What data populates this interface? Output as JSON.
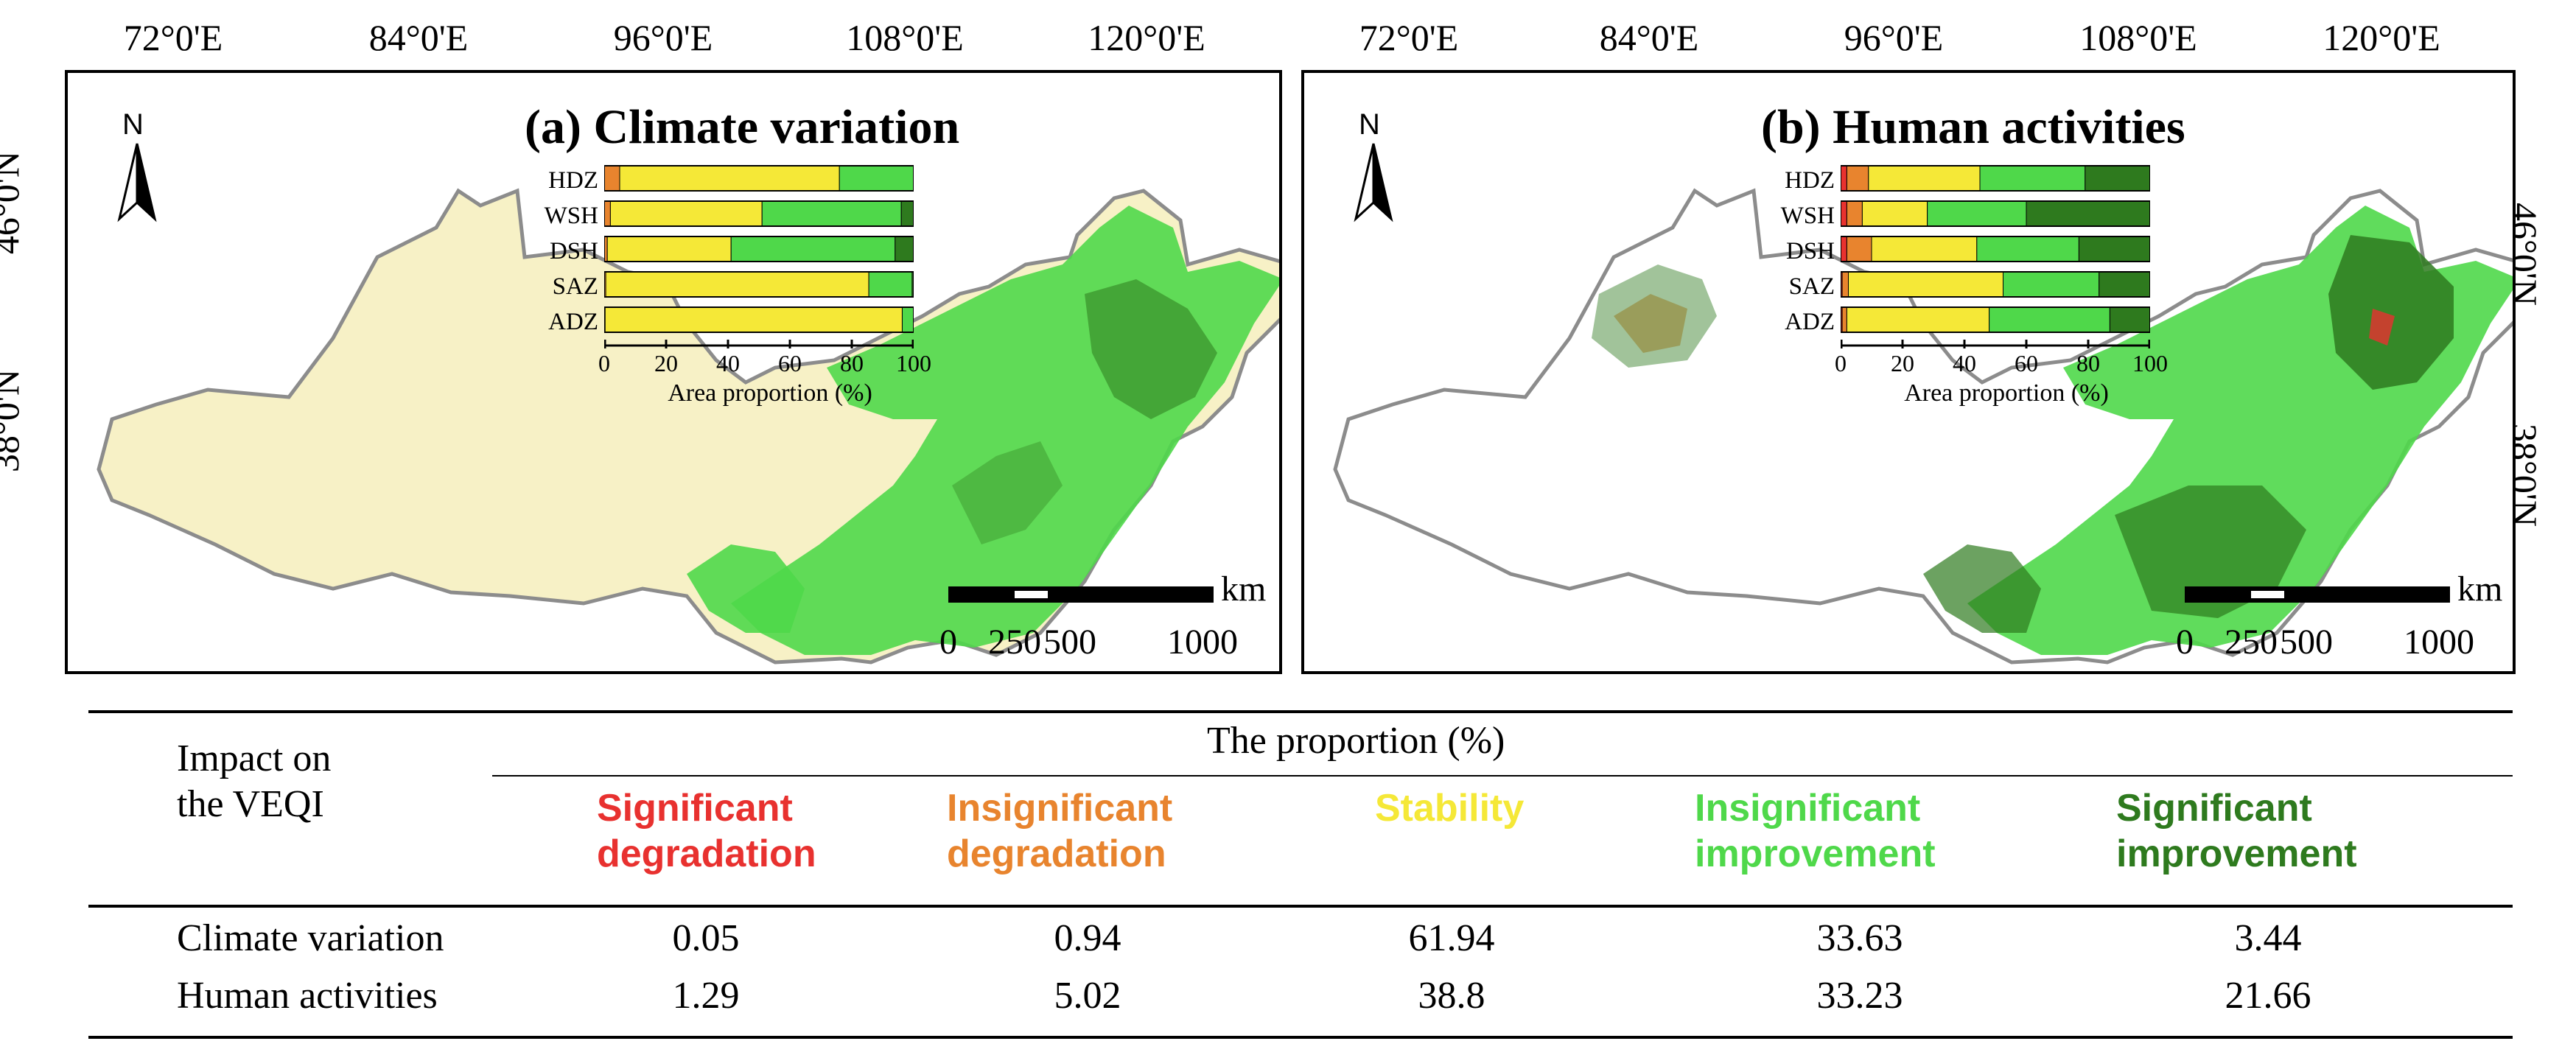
{
  "colors": {
    "significant_degradation": "#e8312f",
    "insignificant_degradation": "#e8842e",
    "stability": "#f5e837",
    "insignificant_improvement": "#4fd84a",
    "significant_improvement": "#2e7a1e",
    "map_pale": "#f7f1c6"
  },
  "axes": {
    "longitude_labels": [
      "72°0'E",
      "84°0'E",
      "96°0'E",
      "108°0'E",
      "120°0'E"
    ],
    "latitude_left": [
      "46°0'N",
      "38°0'N"
    ],
    "latitude_right": [
      "46°0'N",
      "38°0'N"
    ]
  },
  "panels": [
    {
      "id": "a",
      "title": "(a)  Climate variation",
      "north": "N",
      "scale": {
        "unit": "km",
        "labels": [
          "0",
          "250",
          "500",
          "1000"
        ]
      },
      "inset": {
        "categories": [
          "HDZ",
          "WSH",
          "DSH",
          "SAZ",
          "ADZ"
        ],
        "xlabel": "Area proportion (%)",
        "xticks": [
          "0",
          "20",
          "40",
          "60",
          "80",
          "100"
        ],
        "series": [
          {
            "name": "Significant degradation",
            "values": [
              0,
              0,
              0,
              0,
              0
            ]
          },
          {
            "name": "Insignificant degradation",
            "values": [
              5,
              2,
              1,
              0.5,
              0.3
            ]
          },
          {
            "name": "Stability",
            "values": [
              71,
              49,
              40,
              85,
              96
            ]
          },
          {
            "name": "Insignificant improvement",
            "values": [
              24,
              45,
              53,
              14,
              3.7
            ]
          },
          {
            "name": "Significant improvement",
            "values": [
              0,
              4,
              6,
              0.5,
              0
            ]
          }
        ]
      }
    },
    {
      "id": "b",
      "title": "(b)  Human activities",
      "north": "N",
      "scale": {
        "unit": "km",
        "labels": [
          "0",
          "250",
          "500",
          "1000"
        ]
      },
      "inset": {
        "categories": [
          "HDZ",
          "WSH",
          "DSH",
          "SAZ",
          "ADZ"
        ],
        "xlabel": "Area proportion (%)",
        "xticks": [
          "0",
          "20",
          "40",
          "60",
          "80",
          "100"
        ],
        "series": [
          {
            "name": "Significant degradation",
            "values": [
              2,
              2,
              2,
              0.5,
              0.5
            ]
          },
          {
            "name": "Insignificant degradation",
            "values": [
              7,
              5,
              8,
              2,
              1.5
            ]
          },
          {
            "name": "Stability",
            "values": [
              36,
              21,
              34,
              50,
              46
            ]
          },
          {
            "name": "Insignificant improvement",
            "values": [
              34,
              32,
              33,
              31,
              39
            ]
          },
          {
            "name": "Significant improvement",
            "values": [
              21,
              40,
              23,
              16.5,
              13
            ]
          }
        ]
      }
    }
  ],
  "table": {
    "corner_label_line1": "Impact on",
    "corner_label_line2": "the  VEQI",
    "group_header": "The proportion (%)",
    "columns": [
      {
        "line1": "Significant",
        "line2": "degradation",
        "color_key": "significant_degradation"
      },
      {
        "line1": "Insignificant",
        "line2": "degradation",
        "color_key": "insignificant_degradation"
      },
      {
        "line1": "Stability",
        "line2": "",
        "color_key": "stability"
      },
      {
        "line1": "Insignificant",
        "line2": "improvement",
        "color_key": "insignificant_improvement"
      },
      {
        "line1": "Significant",
        "line2": "improvement",
        "color_key": "significant_improvement"
      }
    ],
    "rows": [
      {
        "label": "Climate variation",
        "values": [
          "0.05",
          "0.94",
          "61.94",
          "33.63",
          "3.44"
        ]
      },
      {
        "label": "Human activities",
        "values": [
          "1.29",
          "5.02",
          "38.8",
          "33.23",
          "21.66"
        ]
      }
    ]
  }
}
